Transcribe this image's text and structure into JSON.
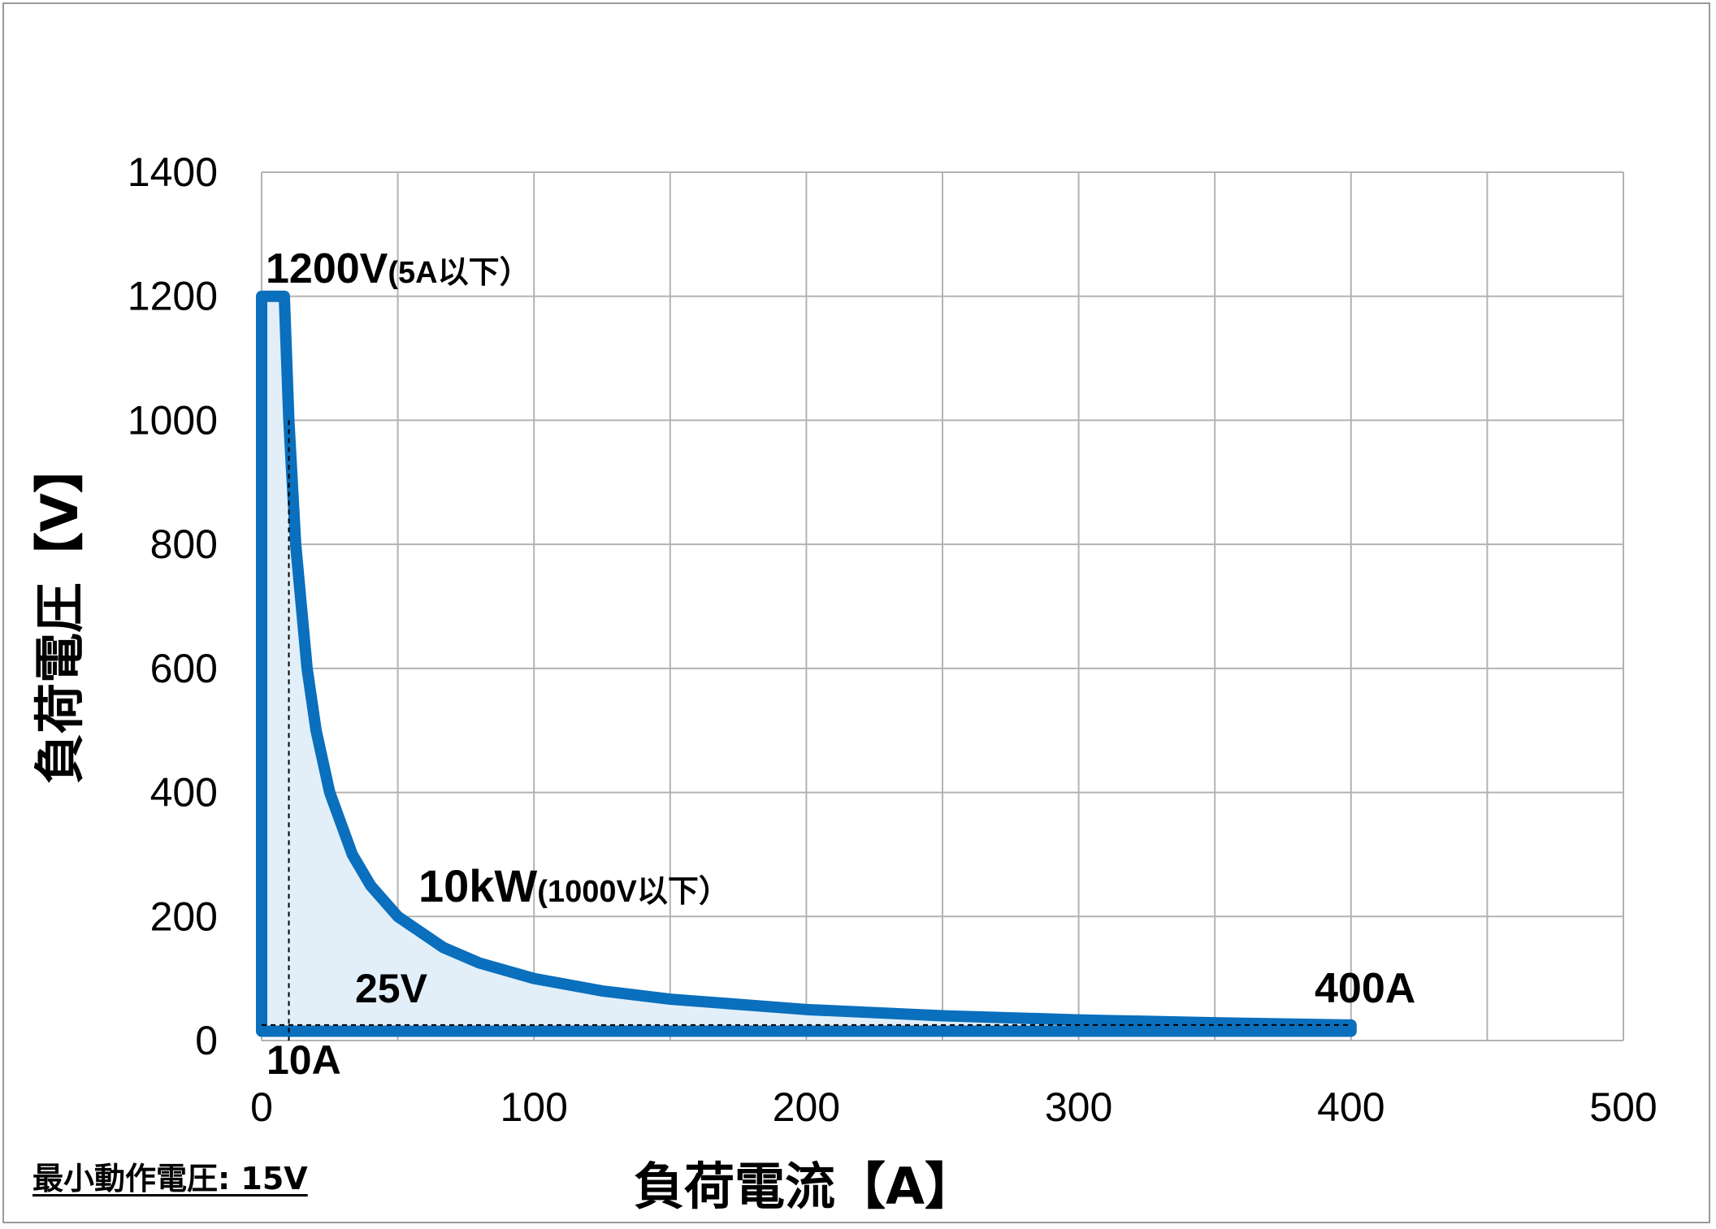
{
  "chart_data": {
    "type": "line",
    "xlabel": "負荷電流【A】",
    "ylabel": "負荷電圧【V】",
    "xlim": [
      0,
      500
    ],
    "ylim": [
      0,
      1400
    ],
    "xticks": [
      "0",
      "100",
      "200",
      "300",
      "400",
      "500"
    ],
    "yticks": [
      "0",
      "200",
      "400",
      "600",
      "800",
      "1000",
      "1200",
      "1400"
    ],
    "grid": true,
    "colors": {
      "curve": "#0a6fbd",
      "fill": "#e2eff8",
      "grid": "#b3b3b3"
    },
    "series": [
      {
        "x": [
          0,
          5,
          8.33,
          10,
          12.5,
          16.7,
          20,
          25,
          33.3,
          40,
          50,
          66.7,
          80,
          100,
          125,
          150,
          200,
          250,
          300,
          350,
          400,
          400,
          0
        ],
        "y": [
          1200,
          1200,
          1200,
          1000,
          800,
          600,
          500,
          400,
          300,
          250,
          200,
          150,
          125,
          100,
          80,
          66.7,
          50,
          40,
          33.3,
          28.6,
          25,
          15,
          15
        ]
      }
    ],
    "reference_lines": [
      {
        "type": "vertical",
        "x": 10,
        "label": "10A"
      },
      {
        "type": "horizontal",
        "y": 25,
        "label": "25V"
      }
    ],
    "annotations": [
      {
        "main": "1200V",
        "sub": "(5A以下）"
      },
      {
        "main": "10kW",
        "sub": "(1000V以下）"
      },
      {
        "main": "25V"
      },
      {
        "main": "10A"
      },
      {
        "main": "400A"
      }
    ]
  },
  "footnote": "最小動作電圧: 15V"
}
